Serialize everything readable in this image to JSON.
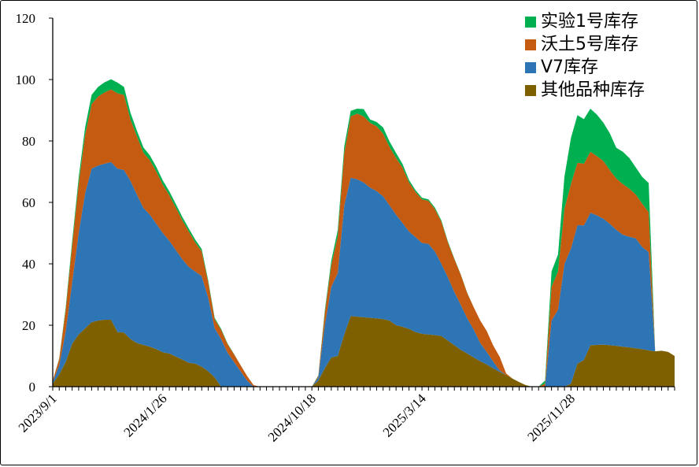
{
  "chart_data": {
    "type": "area",
    "stacked": true,
    "title": "",
    "xlabel": "",
    "ylabel": "",
    "ylim": [
      0,
      120
    ],
    "yticks": [
      0,
      20,
      40,
      60,
      80,
      100,
      120
    ],
    "grid": false,
    "legend_position": "top-right",
    "x_tick_labels": [
      "2023/9/1",
      "2024/1/26",
      "2024/10/18",
      "2025/3/14",
      "2025/11/28"
    ],
    "x_tick_label_index": [
      0,
      17,
      40,
      57,
      80
    ],
    "n_points": 97,
    "series_order_bottom_to_top": [
      "其他品种库存",
      "V7库存",
      "沃土5号库存",
      "实验1号库存"
    ],
    "legend_order": [
      "实验1号库存",
      "沃土5号库存",
      "V7库存",
      "其他品种库存"
    ],
    "colors": {
      "实验1号库存": "#00b050",
      "沃土5号库存": "#c55a11",
      "V7库存": "#2e75b6",
      "其他品种库存": "#7f6000"
    },
    "series": [
      {
        "name": "其他品种库存",
        "values": [
          1,
          4,
          8,
          14,
          17,
          19,
          21,
          21.5,
          21.8,
          21.8,
          17.8,
          17.6,
          15.5,
          14.2,
          13.6,
          13.0,
          12.2,
          11.2,
          10.8,
          9.8,
          8.8,
          7.8,
          7.5,
          6.5,
          5,
          3,
          0,
          0,
          0,
          0,
          0,
          0,
          0,
          0,
          0,
          0,
          0,
          0,
          0,
          0,
          0,
          2,
          6,
          9.5,
          10,
          17,
          23,
          22.8,
          22.6,
          22.4,
          22.2,
          22.0,
          21.5,
          20,
          19.5,
          18.8,
          17.8,
          17.2,
          17,
          16.8,
          16.5,
          15,
          13.5,
          12,
          10.8,
          9.5,
          8.3,
          7.2,
          6,
          4.8,
          3.8,
          2.6,
          1.5,
          0.5,
          0,
          0,
          0,
          0,
          0,
          0,
          1,
          7.5,
          8.7,
          13.5,
          13.6,
          13.7,
          13.5,
          13.3,
          13.0,
          12.8,
          12.5,
          12.2,
          11.8,
          11.5,
          11.7,
          11.3,
          10
        ]
      },
      {
        "name": "V7库存",
        "values": [
          0.5,
          3,
          10,
          20,
          33,
          44,
          50,
          50.5,
          50.8,
          51.3,
          53.2,
          52.9,
          51.5,
          48.3,
          44.6,
          43.0,
          40.8,
          38.8,
          36.7,
          34.7,
          32.7,
          31.2,
          30.0,
          29.5,
          24,
          16,
          15.5,
          11,
          8,
          5,
          2,
          0,
          0,
          0,
          0,
          0,
          0,
          0,
          0,
          0,
          0,
          1,
          14,
          23,
          27,
          42,
          45,
          44.7,
          43.9,
          42.4,
          41.5,
          40.0,
          37.5,
          36.0,
          33.8,
          31.7,
          30.9,
          29.6,
          29.5,
          27.2,
          23.5,
          20.6,
          17.3,
          14.6,
          11.4,
          9.1,
          5.9,
          4.1,
          2.2,
          0.5,
          0,
          0,
          0,
          0,
          0,
          0,
          0,
          21.5,
          25,
          40,
          44,
          45.1,
          43.8,
          43.1,
          42.2,
          41,
          39.5,
          37.8,
          36.5,
          36,
          35.8,
          33.3,
          32
        ]
      },
      {
        "name": "沃土5号库存",
        "values": [
          0.5,
          2,
          7,
          12,
          16,
          19,
          21,
          22.5,
          23.2,
          23.7,
          24.5,
          24.5,
          20,
          19,
          18,
          17.7,
          17.0,
          15.7,
          14.8,
          13.8,
          12.7,
          11.5,
          9.5,
          8,
          5,
          3,
          3,
          2.8,
          2.5,
          2,
          1.5,
          0.5,
          0,
          0,
          0,
          0,
          0,
          0,
          0,
          0,
          0,
          0.5,
          4,
          7,
          12,
          17,
          20,
          21.4,
          21.5,
          21.1,
          21.1,
          20.4,
          19.0,
          18.5,
          18.0,
          16.0,
          14.7,
          14.2,
          14.0,
          13.8,
          13.7,
          11.4,
          10.7,
          9.8,
          8.2,
          7.2,
          7.3,
          6.8,
          5.2,
          4.4,
          0.5,
          0,
          0,
          0,
          0,
          0,
          1,
          11,
          12.5,
          18,
          21,
          20.3,
          20.1,
          19.9,
          19.3,
          18.8,
          17.5,
          16.7,
          16.5,
          15.7,
          14.3,
          14.1,
          13
        ]
      },
      {
        "name": "实验1号库存",
        "values": [
          0,
          0.2,
          0.8,
          1.5,
          2,
          2.5,
          3,
          3.1,
          3.3,
          3.3,
          3.5,
          2.6,
          2.2,
          1.8,
          1.7,
          1.6,
          1.5,
          1.4,
          1.3,
          1.2,
          1.1,
          1.0,
          0.9,
          0.8,
          0.6,
          0.4,
          0.3,
          0.2,
          0.1,
          0,
          0,
          0,
          0,
          0,
          0,
          0,
          0,
          0,
          0,
          0,
          0,
          0.2,
          0.8,
          1.5,
          2,
          2.2,
          1.8,
          1.6,
          2.4,
          1.1,
          1.4,
          2.0,
          1.8,
          1.6,
          1.2,
          0.8,
          0.6,
          0.5,
          0.5,
          0.5,
          0.4,
          0.3,
          0.2,
          0.1,
          0.1,
          0,
          0,
          0,
          0,
          0,
          0,
          0,
          0,
          0,
          0,
          0,
          1,
          5,
          5.5,
          10.5,
          15,
          15.5,
          14.5,
          14,
          13.5,
          12.5,
          12,
          10,
          10.5,
          10,
          8.8,
          8.7,
          9.5
        ]
      }
    ]
  }
}
